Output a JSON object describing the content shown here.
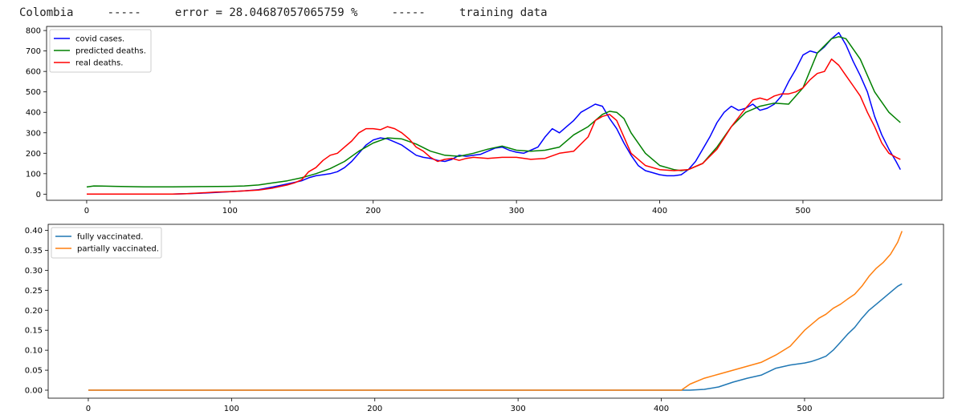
{
  "header": {
    "country": "Colombia",
    "sep1": "-----",
    "error_text": "error = 28.04687057065759 %",
    "sep2": "-----",
    "mode": "training data"
  },
  "colors": {
    "covid_cases": "#0000ff",
    "predicted_deaths": "#008000",
    "real_deaths": "#ff0000",
    "fully_vaccinated": "#1f77b4",
    "partially_vaccinated": "#ff7f0e"
  },
  "chart_data": [
    {
      "type": "line",
      "title": "",
      "xlabel": "",
      "ylabel": "",
      "xlim": [
        -28,
        597
      ],
      "ylim": [
        -30,
        820
      ],
      "xticks": [
        0,
        100,
        200,
        300,
        400,
        500
      ],
      "yticks": [
        0,
        100,
        200,
        300,
        400,
        500,
        600,
        700,
        800
      ],
      "legend": "top-left",
      "grid": false,
      "series": [
        {
          "name": "covid cases.",
          "color_key": "covid_cases",
          "x": [
            0,
            20,
            40,
            60,
            70,
            80,
            90,
            100,
            110,
            120,
            130,
            140,
            150,
            155,
            160,
            165,
            170,
            175,
            180,
            185,
            190,
            195,
            200,
            205,
            210,
            215,
            220,
            225,
            230,
            235,
            240,
            245,
            250,
            255,
            260,
            265,
            270,
            275,
            280,
            285,
            290,
            295,
            300,
            305,
            310,
            315,
            320,
            325,
            330,
            335,
            340,
            345,
            350,
            355,
            360,
            365,
            370,
            375,
            380,
            385,
            390,
            395,
            400,
            405,
            410,
            415,
            420,
            425,
            430,
            435,
            440,
            445,
            450,
            455,
            460,
            465,
            470,
            475,
            480,
            485,
            490,
            495,
            500,
            505,
            510,
            515,
            520,
            525,
            530,
            535,
            540,
            545,
            550,
            555,
            560,
            565,
            568
          ],
          "y": [
            0,
            0,
            0,
            0,
            2,
            5,
            8,
            12,
            16,
            22,
            35,
            50,
            65,
            80,
            90,
            95,
            100,
            110,
            130,
            160,
            200,
            240,
            265,
            275,
            270,
            255,
            240,
            215,
            190,
            180,
            175,
            165,
            160,
            170,
            190,
            185,
            190,
            195,
            210,
            225,
            230,
            215,
            205,
            200,
            215,
            230,
            280,
            320,
            300,
            330,
            360,
            400,
            420,
            440,
            430,
            370,
            320,
            250,
            190,
            140,
            115,
            105,
            95,
            90,
            90,
            95,
            120,
            160,
            220,
            280,
            350,
            400,
            430,
            410,
            420,
            440,
            410,
            420,
            440,
            480,
            550,
            610,
            680,
            700,
            690,
            720,
            760,
            790,
            730,
            650,
            580,
            500,
            380,
            290,
            220,
            160,
            120
          ]
        },
        {
          "name": "predicted deaths.",
          "color_key": "predicted_deaths",
          "x": [
            0,
            5,
            20,
            40,
            60,
            80,
            100,
            110,
            120,
            130,
            140,
            150,
            160,
            170,
            180,
            190,
            200,
            210,
            220,
            230,
            240,
            250,
            260,
            270,
            280,
            290,
            300,
            310,
            320,
            330,
            340,
            350,
            360,
            365,
            370,
            375,
            380,
            390,
            400,
            410,
            415,
            420,
            430,
            440,
            450,
            460,
            470,
            480,
            490,
            500,
            510,
            520,
            525,
            530,
            540,
            550,
            560,
            568
          ],
          "y": [
            35,
            40,
            38,
            36,
            36,
            37,
            38,
            40,
            45,
            55,
            65,
            80,
            100,
            125,
            160,
            210,
            250,
            275,
            270,
            245,
            210,
            190,
            185,
            200,
            220,
            235,
            215,
            210,
            215,
            230,
            290,
            330,
            390,
            405,
            400,
            370,
            300,
            200,
            140,
            120,
            115,
            120,
            150,
            230,
            330,
            400,
            430,
            445,
            440,
            520,
            690,
            760,
            770,
            760,
            660,
            500,
            400,
            350
          ]
        },
        {
          "name": "real deaths.",
          "color_key": "real_deaths",
          "x": [
            0,
            20,
            40,
            60,
            70,
            80,
            90,
            100,
            110,
            120,
            130,
            140,
            145,
            150,
            155,
            160,
            165,
            170,
            175,
            180,
            185,
            190,
            195,
            200,
            205,
            210,
            215,
            220,
            225,
            230,
            235,
            240,
            245,
            250,
            255,
            260,
            265,
            270,
            280,
            290,
            300,
            310,
            320,
            330,
            340,
            350,
            355,
            360,
            365,
            370,
            375,
            380,
            390,
            400,
            410,
            420,
            430,
            440,
            450,
            460,
            465,
            470,
            475,
            480,
            485,
            490,
            495,
            500,
            505,
            510,
            515,
            520,
            525,
            530,
            535,
            540,
            545,
            550,
            555,
            560,
            565,
            568
          ],
          "y": [
            0,
            0,
            0,
            0,
            2,
            6,
            10,
            12,
            16,
            20,
            30,
            45,
            55,
            70,
            110,
            130,
            165,
            190,
            200,
            230,
            260,
            300,
            320,
            320,
            315,
            330,
            320,
            300,
            270,
            230,
            210,
            180,
            160,
            170,
            175,
            165,
            175,
            180,
            175,
            180,
            180,
            170,
            175,
            200,
            210,
            280,
            360,
            380,
            390,
            360,
            280,
            200,
            140,
            120,
            115,
            120,
            150,
            220,
            330,
            420,
            460,
            470,
            460,
            480,
            490,
            490,
            500,
            520,
            560,
            590,
            600,
            660,
            630,
            580,
            530,
            480,
            400,
            330,
            250,
            200,
            180,
            170
          ]
        }
      ]
    },
    {
      "type": "line",
      "title": "",
      "xlabel": "",
      "ylabel": "",
      "xlim": [
        -28,
        597
      ],
      "ylim": [
        -0.02,
        0.415
      ],
      "xticks": [
        0,
        100,
        200,
        300,
        400,
        500
      ],
      "yticks": [
        0.0,
        0.05,
        0.1,
        0.15,
        0.2,
        0.25,
        0.3,
        0.35,
        0.4
      ],
      "legend": "top-left",
      "grid": false,
      "series": [
        {
          "name": "fully vaccinated.",
          "color_key": "fully_vaccinated",
          "x": [
            0,
            420,
            430,
            440,
            450,
            460,
            470,
            480,
            490,
            500,
            505,
            510,
            515,
            520,
            525,
            530,
            535,
            540,
            545,
            550,
            555,
            560,
            565,
            568
          ],
          "y": [
            0,
            0,
            0.002,
            0.008,
            0.02,
            0.03,
            0.038,
            0.055,
            0.063,
            0.068,
            0.072,
            0.078,
            0.085,
            0.1,
            0.12,
            0.14,
            0.157,
            0.18,
            0.2,
            0.215,
            0.23,
            0.245,
            0.26,
            0.266
          ]
        },
        {
          "name": "partially vaccinated.",
          "color_key": "partially_vaccinated",
          "x": [
            0,
            414,
            420,
            430,
            440,
            450,
            460,
            470,
            480,
            490,
            495,
            500,
            505,
            510,
            515,
            520,
            525,
            530,
            535,
            540,
            545,
            550,
            555,
            560,
            565,
            568
          ],
          "y": [
            0,
            0,
            0.015,
            0.03,
            0.04,
            0.05,
            0.06,
            0.07,
            0.088,
            0.11,
            0.13,
            0.15,
            0.165,
            0.18,
            0.19,
            0.205,
            0.215,
            0.228,
            0.24,
            0.26,
            0.285,
            0.305,
            0.32,
            0.34,
            0.37,
            0.398
          ]
        }
      ]
    }
  ]
}
